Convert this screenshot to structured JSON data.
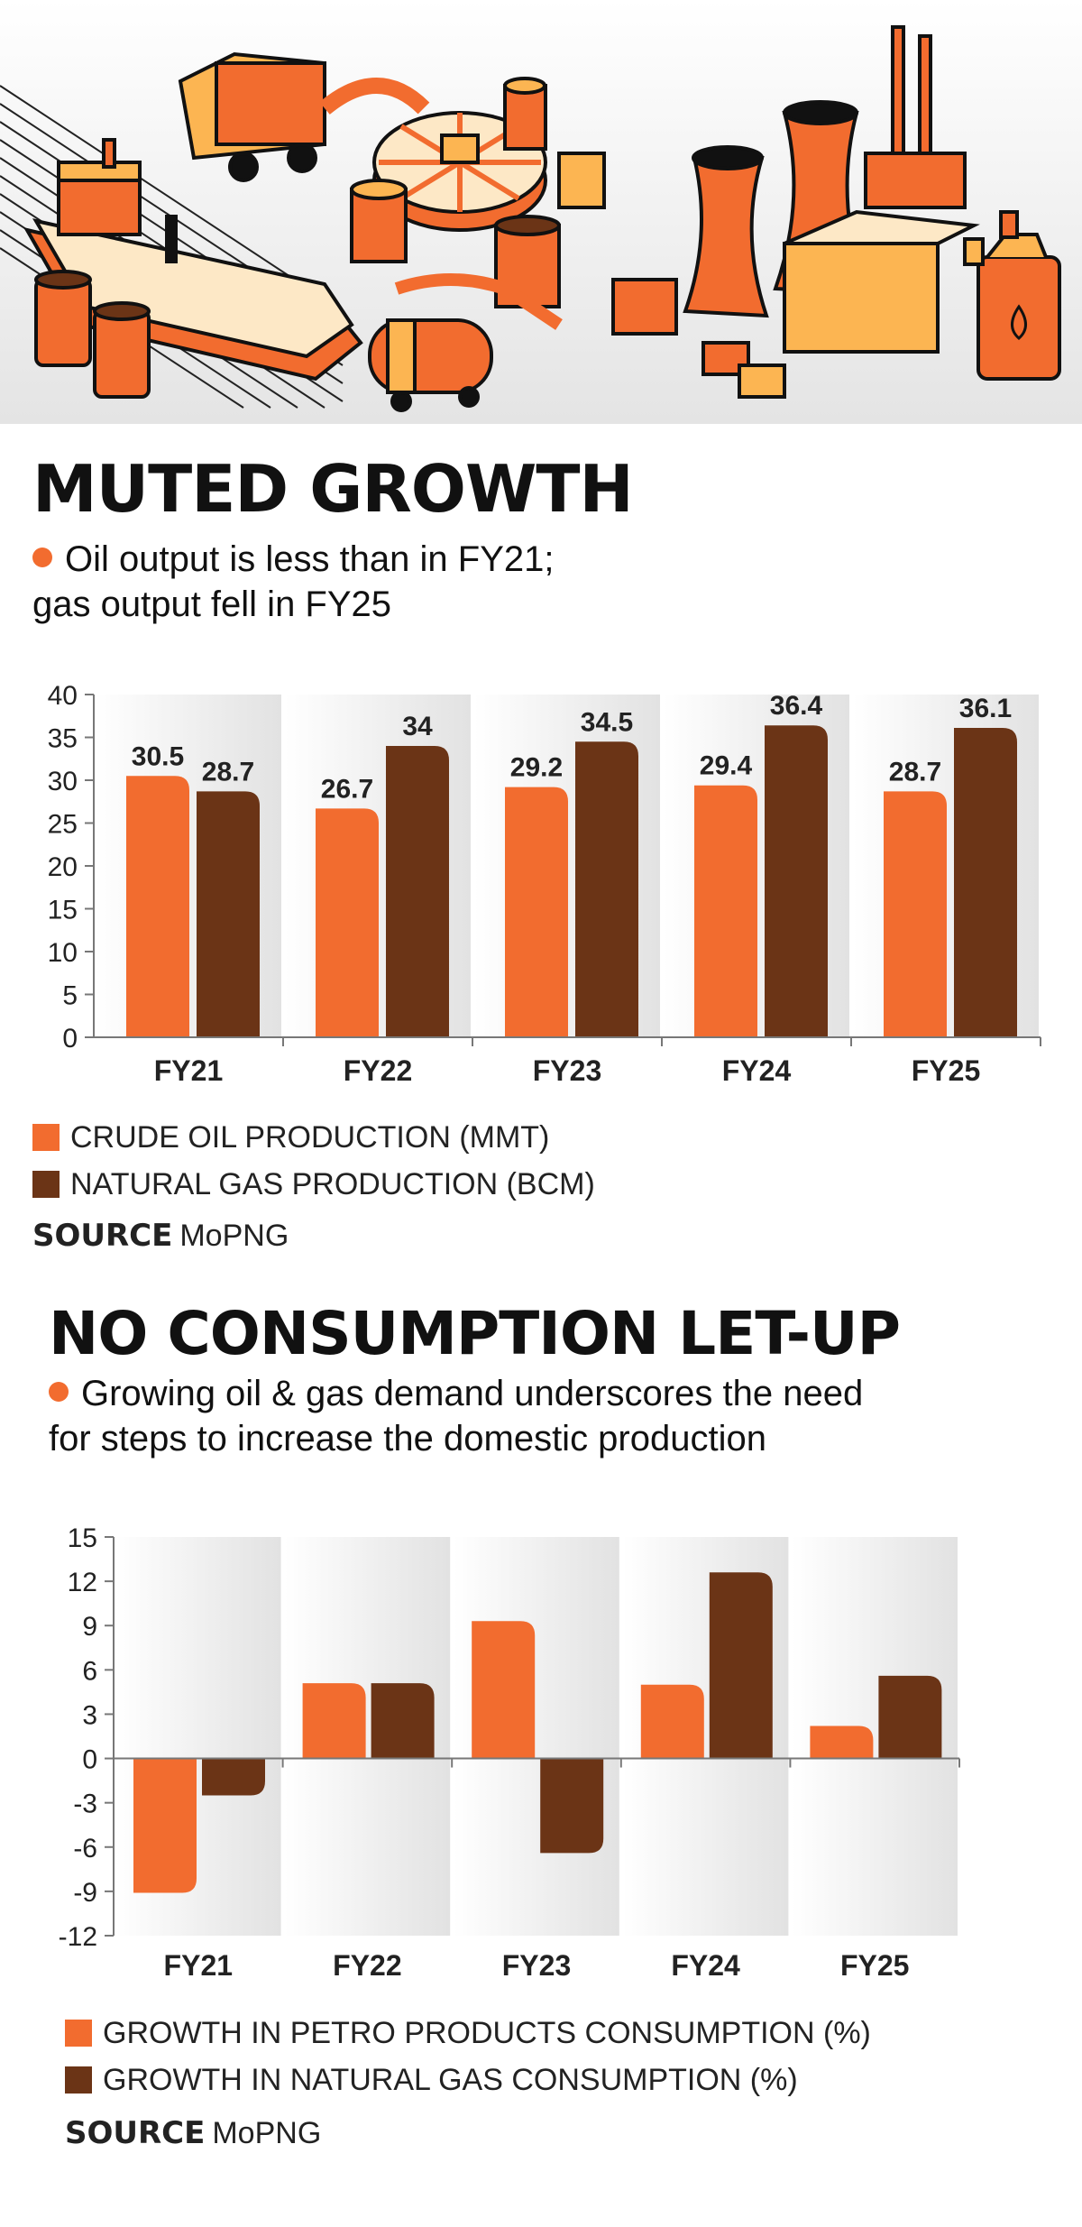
{
  "colors": {
    "oil": "#f26c2f",
    "gas": "#6b3416",
    "accent_dot": "#f26c2f",
    "panel": "#ececec"
  },
  "sections": [
    {
      "title": "MUTED GROWTH",
      "subtitle_lines": [
        "Oil output is less than in FY21;",
        "gas output fell in FY25"
      ],
      "legend": [
        "CRUDE OIL PRODUCTION (MMT)",
        "NATURAL GAS PRODUCTION (BCM)"
      ],
      "source_label": "SOURCE",
      "source_value": "MoPNG"
    },
    {
      "title": "NO CONSUMPTION LET-UP",
      "subtitle_lines": [
        "Growing oil & gas demand underscores the need",
        "for steps to increase the domestic production"
      ],
      "legend": [
        "GROWTH IN PETRO PRODUCTS CONSUMPTION (%)",
        "GROWTH IN NATURAL GAS CONSUMPTION (%)"
      ],
      "source_label": "SOURCE",
      "source_value": "MoPNG"
    }
  ],
  "chart_data": [
    {
      "type": "bar",
      "categories": [
        "FY21",
        "FY22",
        "FY23",
        "FY24",
        "FY25"
      ],
      "series": [
        {
          "name": "CRUDE OIL PRODUCTION (MMT)",
          "values": [
            30.5,
            26.7,
            29.2,
            29.4,
            28.7
          ],
          "labels": [
            "30.5",
            "26.7",
            "29.2",
            "29.4",
            "28.7"
          ]
        },
        {
          "name": "NATURAL GAS PRODUCTION (BCM)",
          "values": [
            28.7,
            34,
            34.5,
            36.4,
            36.1
          ],
          "labels": [
            "28.7",
            "34",
            "34.5",
            "36.4",
            "36.1"
          ]
        }
      ],
      "yticks": [
        "0",
        "5",
        "10",
        "15",
        "20",
        "25",
        "30",
        "35",
        "40"
      ],
      "ylim": [
        0,
        40
      ],
      "data_labels": true,
      "legend_position": "bottom-left"
    },
    {
      "type": "bar",
      "categories": [
        "FY21",
        "FY22",
        "FY23",
        "FY24",
        "FY25"
      ],
      "series": [
        {
          "name": "GROWTH IN PETRO PRODUCTS CONSUMPTION (%)",
          "values": [
            -9.1,
            5.1,
            9.3,
            5.0,
            2.2
          ]
        },
        {
          "name": "GROWTH IN NATURAL GAS CONSUMPTION (%)",
          "values": [
            -2.5,
            5.1,
            -6.4,
            12.6,
            5.6
          ]
        }
      ],
      "yticks": [
        "-12",
        "-9",
        "-6",
        "-3",
        "0",
        "3",
        "6",
        "9",
        "12",
        "15"
      ],
      "ylim": [
        -12,
        15
      ],
      "data_labels": false,
      "legend_position": "bottom-left"
    }
  ]
}
